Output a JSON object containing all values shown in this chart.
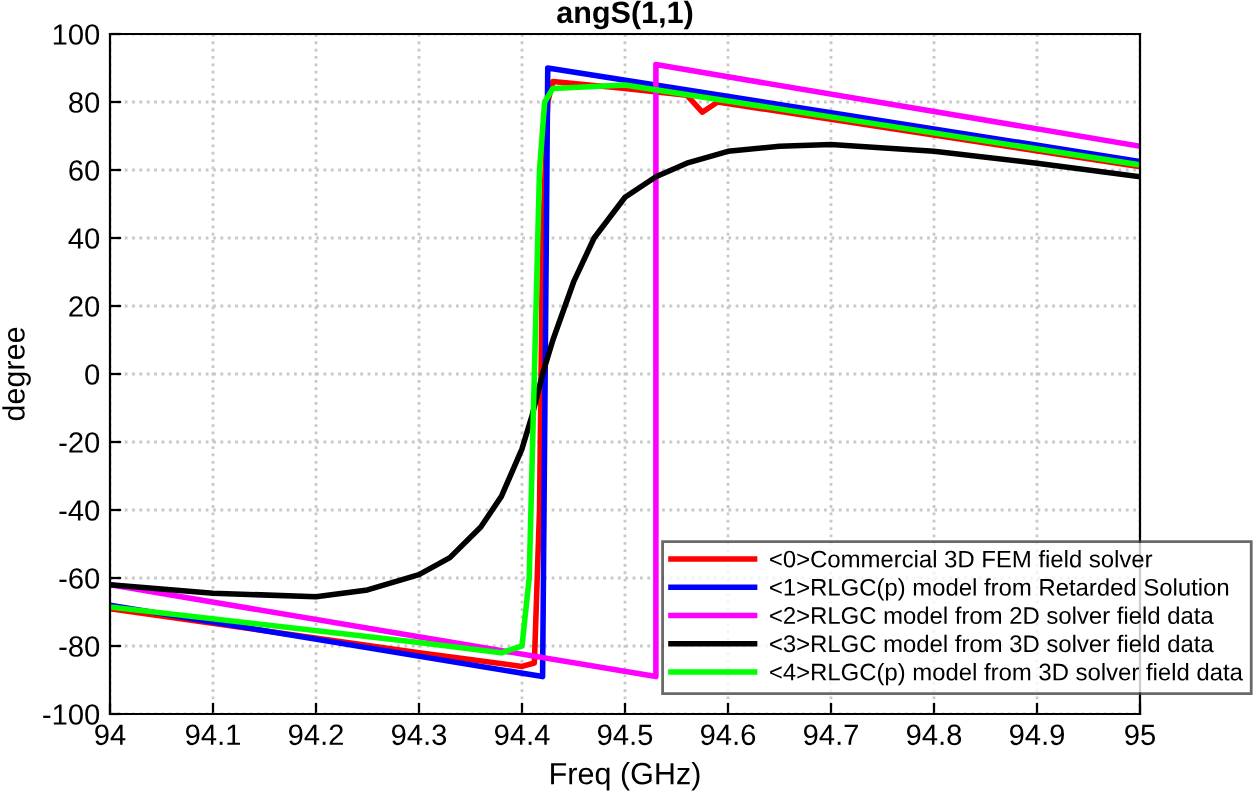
{
  "chart_data": {
    "type": "line",
    "title": "angS(1,1)",
    "xlabel": "Freq (GHz)",
    "ylabel": "degree",
    "xlim": [
      94,
      95
    ],
    "ylim": [
      -100,
      100
    ],
    "xticks": [
      94,
      94.1,
      94.2,
      94.3,
      94.4,
      94.5,
      94.6,
      94.7,
      94.8,
      94.9,
      95
    ],
    "yticks": [
      -100,
      -80,
      -60,
      -40,
      -20,
      0,
      20,
      40,
      60,
      80,
      100
    ],
    "grid": true,
    "legend": "bottom right",
    "line_style": "solid",
    "marker": "none",
    "series": [
      {
        "name": "<0>Commercial 3D FEM field solver",
        "color": "#ff0000",
        "x": [
          94,
          94.3,
          94.4,
          94.412,
          94.417,
          94.42,
          94.425,
          94.43,
          94.5,
          94.56,
          94.575,
          94.59,
          95
        ],
        "values": [
          -69,
          -82,
          -86,
          -85,
          -40,
          40,
          80,
          86,
          84,
          82,
          77,
          80,
          61
        ]
      },
      {
        "name": "<1>RLGC(p) model from Retarded Solution",
        "color": "#0000ff",
        "x": [
          94,
          94.42,
          94.425,
          95
        ],
        "values": [
          -68,
          -89,
          90,
          62.5
        ]
      },
      {
        "name": "<2>RLGC model from 2D solver field data",
        "color": "#ff00ff",
        "x": [
          94,
          94.53,
          94.53,
          95
        ],
        "values": [
          -62,
          -89,
          91,
          67
        ]
      },
      {
        "name": "<3>RLGC model from 3D solver field data",
        "color": "#000000",
        "x": [
          94,
          94.1,
          94.2,
          94.25,
          94.3,
          94.33,
          94.36,
          94.38,
          94.4,
          94.41,
          94.42,
          94.43,
          94.45,
          94.47,
          94.5,
          94.53,
          94.56,
          94.6,
          94.65,
          94.7,
          94.8,
          94.9,
          95
        ],
        "values": [
          -62,
          -64.5,
          -65.5,
          -63.5,
          -59,
          -54,
          -45,
          -36,
          -22,
          -12,
          0,
          10,
          27,
          40,
          52,
          58,
          62,
          65.5,
          67,
          67.5,
          65.5,
          62,
          58
        ]
      },
      {
        "name": "<4>RLGC(p) model from 3D solver field data",
        "color": "#00ff00",
        "x": [
          94,
          94.3,
          94.38,
          94.4,
          94.407,
          94.412,
          94.417,
          94.422,
          94.43,
          94.5,
          95
        ],
        "values": [
          -68.5,
          -79,
          -82,
          -80,
          -60,
          0,
          60,
          80,
          84,
          85,
          61.5
        ]
      }
    ]
  }
}
